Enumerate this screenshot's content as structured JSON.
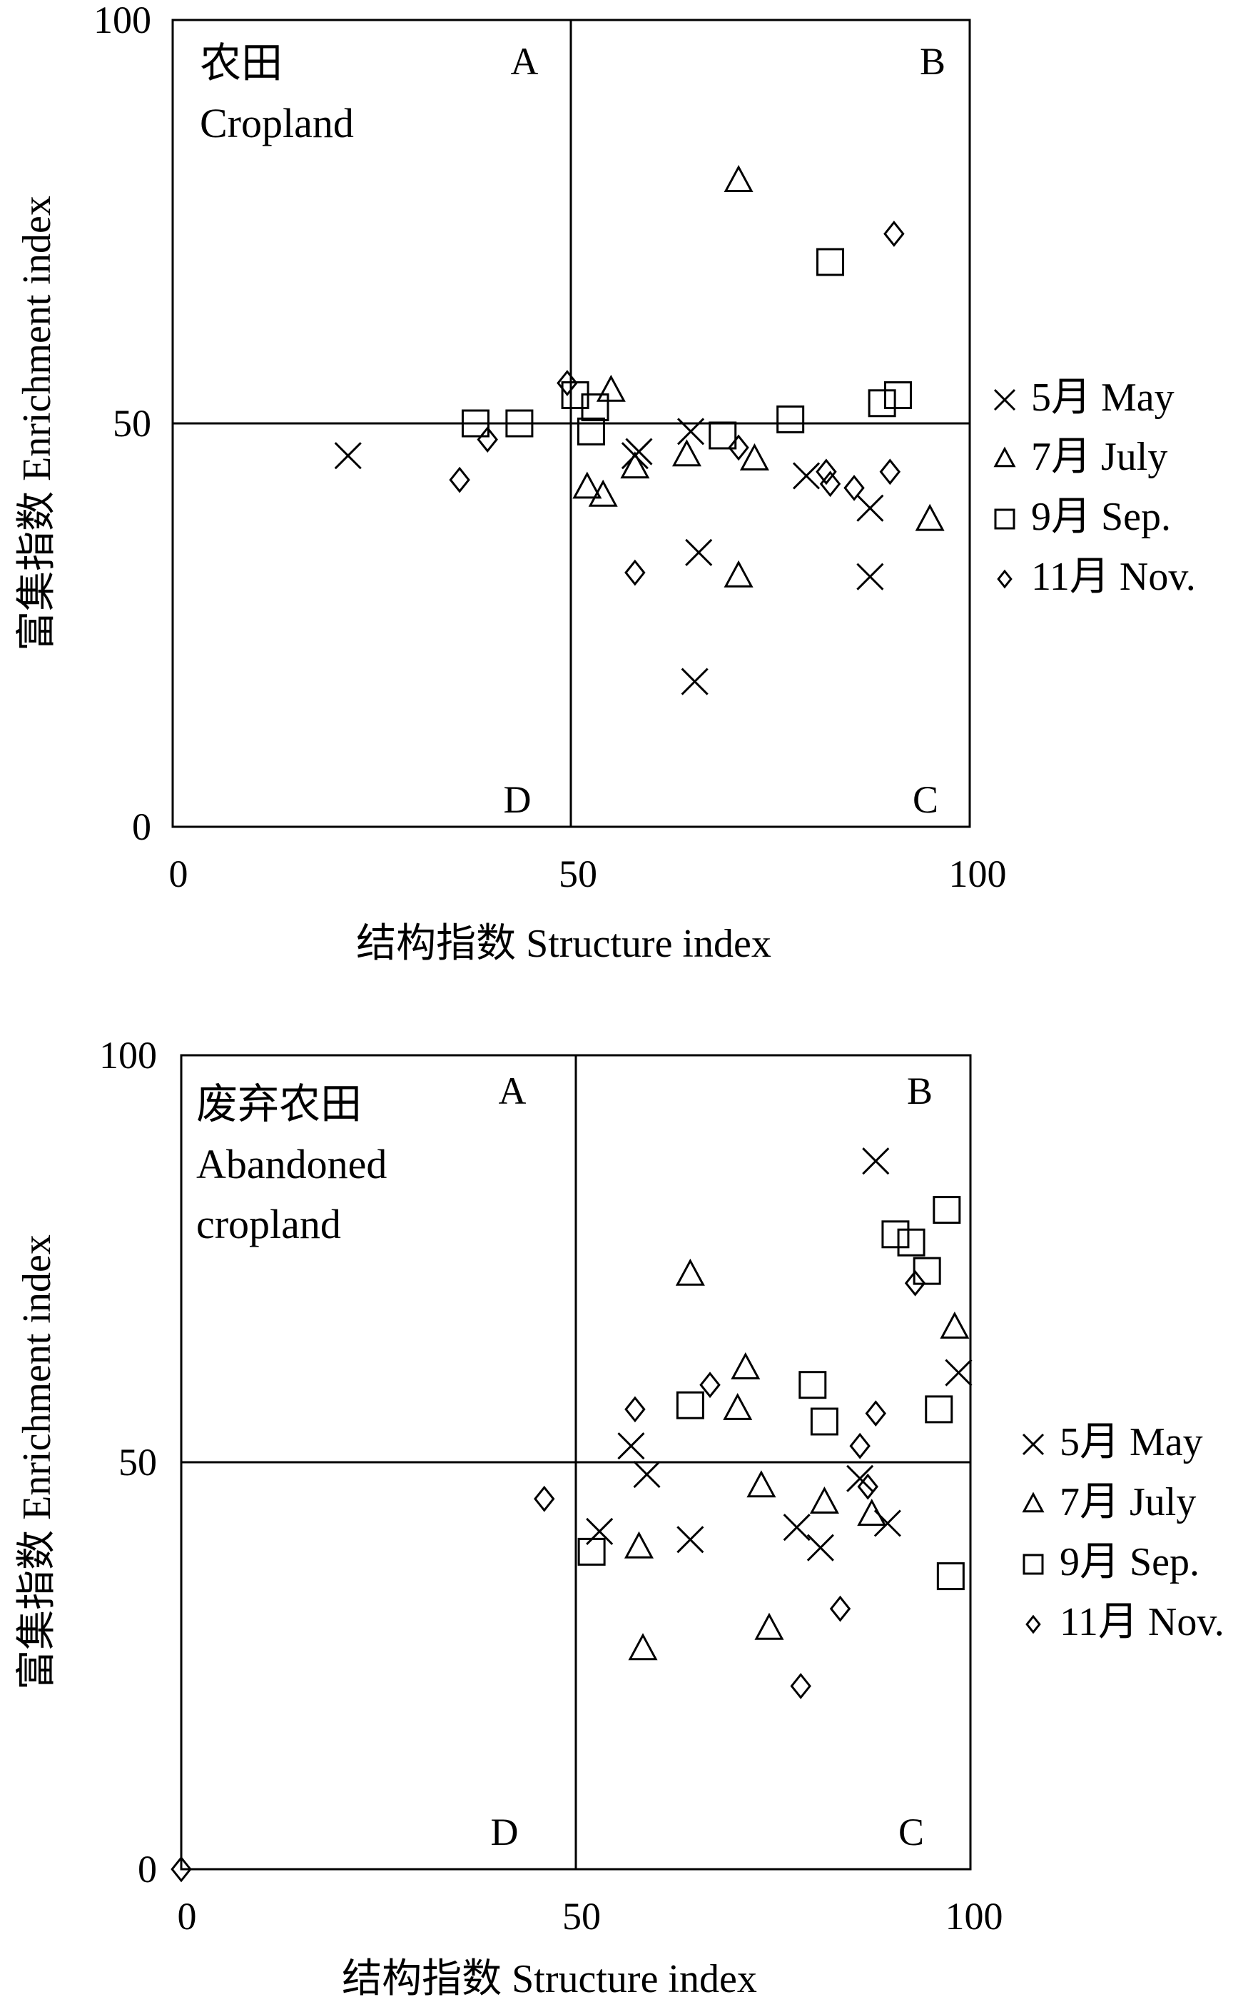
{
  "chart_data": [
    {
      "type": "scatter",
      "panel_label": [
        "农田",
        "Cropland"
      ],
      "xlabel": "结构指数 Structure index",
      "ylabel": "富集指数 Enrichment index",
      "xlim": [
        0,
        100
      ],
      "ylim": [
        0,
        100
      ],
      "xticks": [
        "0",
        "50",
        "100"
      ],
      "yticks": [
        "0",
        "50",
        "100"
      ],
      "quadrants": {
        "A": "A",
        "B": "B",
        "C": "C",
        "D": "D"
      },
      "reference_lines": {
        "x": 50,
        "y": 50
      },
      "grid": false,
      "legend_position": "right",
      "series": [
        {
          "name": "5月 May",
          "marker": "cross",
          "points": [
            [
              22,
              46
            ],
            [
              58,
              46
            ],
            [
              58.5,
              46.5
            ],
            [
              65,
              49
            ],
            [
              66,
              34
            ],
            [
              65.5,
              18
            ],
            [
              79.5,
              43.5
            ],
            [
              87.5,
              39.5
            ],
            [
              87.5,
              31
            ]
          ]
        },
        {
          "name": "7月 July",
          "marker": "triangle",
          "points": [
            [
              55,
              54
            ],
            [
              52,
              42
            ],
            [
              54,
              41
            ],
            [
              58,
              44.5
            ],
            [
              64.5,
              46
            ],
            [
              71,
              80
            ],
            [
              71,
              31
            ],
            [
              73,
              45.5
            ],
            [
              95,
              38
            ]
          ]
        },
        {
          "name": "9月 Sep.",
          "marker": "square",
          "points": [
            [
              38,
              50
            ],
            [
              43.5,
              50
            ],
            [
              50.5,
              53.5
            ],
            [
              53,
              52
            ],
            [
              52.5,
              49
            ],
            [
              69,
              48.5
            ],
            [
              77.5,
              50.5
            ],
            [
              82.5,
              70
            ],
            [
              89,
              52.5
            ],
            [
              91,
              53.5
            ]
          ]
        },
        {
          "name": "11月 Nov.",
          "marker": "diamond",
          "points": [
            [
              36,
              43
            ],
            [
              39.5,
              48
            ],
            [
              49.5,
              55
            ],
            [
              58,
              31.5
            ],
            [
              71,
              47
            ],
            [
              82,
              44
            ],
            [
              82.5,
              42.5
            ],
            [
              85.5,
              42
            ],
            [
              90,
              44
            ],
            [
              90.5,
              73.5
            ]
          ]
        }
      ]
    },
    {
      "type": "scatter",
      "panel_label": [
        "废弃农田",
        "Abandoned",
        "cropland"
      ],
      "xlabel": "结构指数 Structure index",
      "ylabel": "富集指数 Enrichment index",
      "xlim": [
        0,
        100
      ],
      "ylim": [
        0,
        100
      ],
      "xticks": [
        "0",
        "50",
        "100"
      ],
      "yticks": [
        "0",
        "50",
        "100"
      ],
      "quadrants": {
        "A": "A",
        "B": "B",
        "C": "C",
        "D": "D"
      },
      "reference_lines": {
        "x": 50,
        "y": 50
      },
      "grid": false,
      "legend_position": "right",
      "series": [
        {
          "name": "5月 May",
          "marker": "cross",
          "points": [
            [
              53,
              41.5
            ],
            [
              57,
              52
            ],
            [
              59,
              48.5
            ],
            [
              64.5,
              40.5
            ],
            [
              78,
              42
            ],
            [
              81,
              39.5
            ],
            [
              86,
              48
            ],
            [
              88,
              87
            ],
            [
              89.5,
              42.5
            ],
            [
              98.5,
              61
            ]
          ]
        },
        {
          "name": "7月 July",
          "marker": "triangle",
          "points": [
            [
              58,
              39.5
            ],
            [
              58.5,
              27
            ],
            [
              64.5,
              73
            ],
            [
              70.5,
              56.5
            ],
            [
              71.5,
              61.5
            ],
            [
              73.5,
              47
            ],
            [
              74.5,
              29.5
            ],
            [
              81.5,
              45
            ],
            [
              87.5,
              43.5
            ],
            [
              98,
              66.5
            ]
          ]
        },
        {
          "name": "9月 Sep.",
          "marker": "square",
          "points": [
            [
              52,
              39
            ],
            [
              64.5,
              57
            ],
            [
              80,
              59.5
            ],
            [
              81.5,
              55
            ],
            [
              90.5,
              78
            ],
            [
              92.5,
              77
            ],
            [
              94.5,
              73.5
            ],
            [
              96,
              56.5
            ],
            [
              97,
              81
            ],
            [
              97.5,
              36
            ]
          ]
        },
        {
          "name": "11月 Nov.",
          "marker": "diamond",
          "points": [
            [
              0,
              0
            ],
            [
              46,
              45.5
            ],
            [
              57.5,
              56.5
            ],
            [
              67,
              59.5
            ],
            [
              78.5,
              22.5
            ],
            [
              83.5,
              32
            ],
            [
              86,
              52
            ],
            [
              87,
              47
            ],
            [
              88,
              56
            ],
            [
              93,
              72
            ]
          ]
        }
      ]
    }
  ]
}
